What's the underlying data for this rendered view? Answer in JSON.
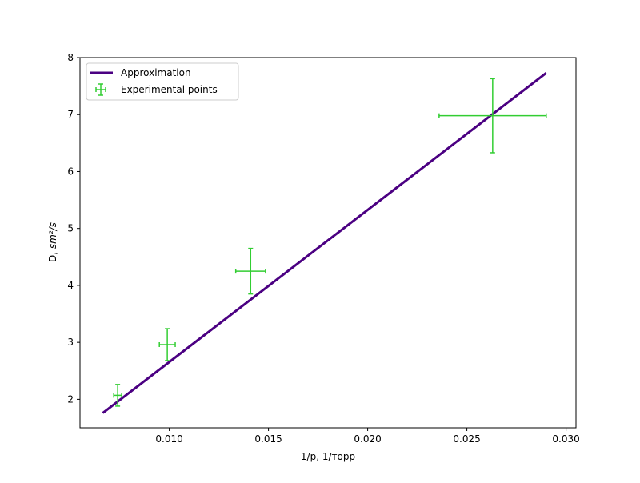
{
  "chart_data": {
    "type": "scatter",
    "title": "",
    "xlabel": "1/p, 1/торр",
    "ylabel_main": "D, ",
    "ylabel_unit": "sm²/s",
    "xlim": [
      0.0055,
      0.0305
    ],
    "ylim": [
      1.5,
      8.0
    ],
    "xticks": [
      0.01,
      0.015,
      0.02,
      0.025,
      0.03
    ],
    "xtick_labels": [
      "0.010",
      "0.015",
      "0.020",
      "0.025",
      "0.030"
    ],
    "yticks": [
      2,
      3,
      4,
      5,
      6,
      7,
      8
    ],
    "ytick_labels": [
      "2",
      "3",
      "4",
      "5",
      "6",
      "7",
      "8"
    ],
    "grid": false,
    "legend_position": "upper left",
    "series": [
      {
        "name": "Approximation",
        "kind": "line",
        "color": "#4b0082",
        "x": [
          0.00665,
          0.029
        ],
        "y": [
          1.76,
          7.73
        ]
      },
      {
        "name": "Experimental points",
        "kind": "errorbar",
        "color": "#32cd32",
        "x": [
          0.0074,
          0.0099,
          0.0141,
          0.0263
        ],
        "y": [
          2.07,
          2.96,
          4.25,
          6.98
        ],
        "xerr": [
          0.0002,
          0.0004,
          0.00075,
          0.0027
        ],
        "yerr": [
          0.19,
          0.28,
          0.4,
          0.65
        ]
      }
    ]
  }
}
